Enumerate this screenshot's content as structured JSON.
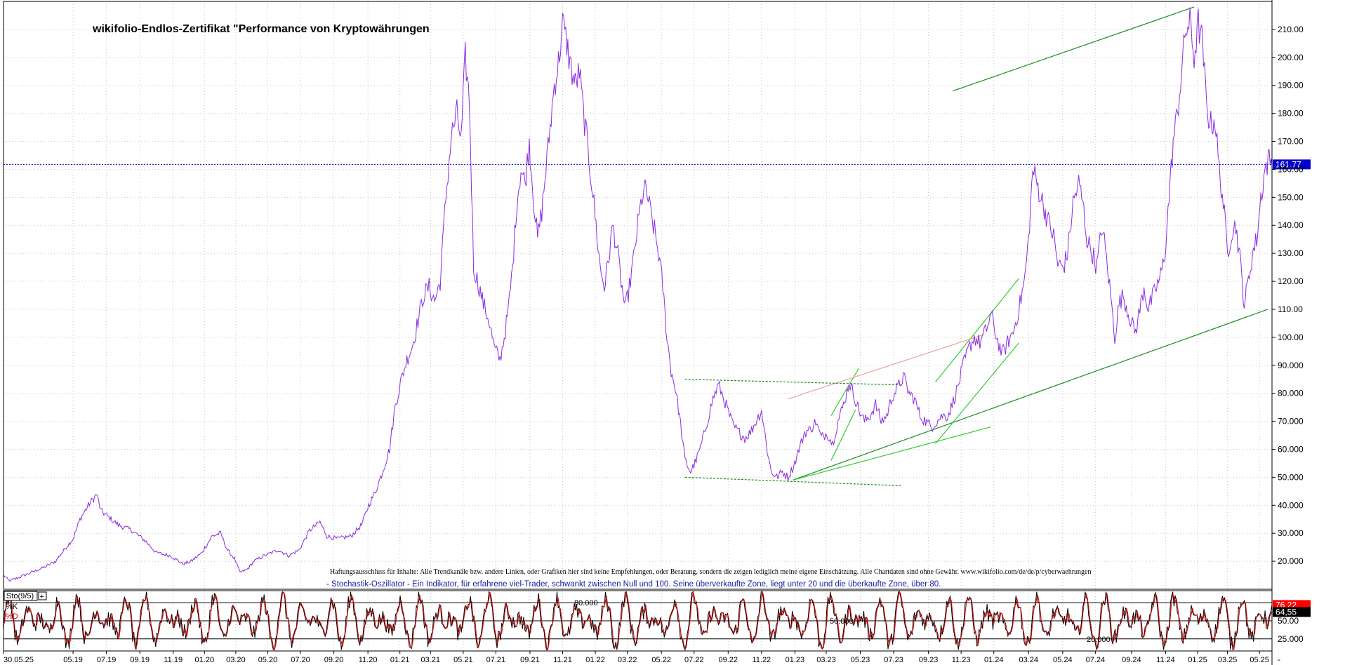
{
  "chart_data": {
    "type": "line",
    "title": "wikifolio-Endlos-Zertifikat \"Performance von Kryptowährungen",
    "ylim": [
      10,
      220
    ],
    "y_ticks": [
      20,
      30,
      40,
      50,
      60,
      70,
      80,
      90,
      100,
      110,
      120,
      130,
      140,
      150,
      160,
      170,
      180,
      190,
      200,
      210
    ],
    "y_tick_labels": [
      "20.000",
      "30.000",
      "40.000",
      "50.000",
      "60.000",
      "70.000",
      "80.000",
      "90.000",
      "100.00",
      "110.00",
      "120.00",
      "130.00",
      "140.00",
      "150.00",
      "160.00",
      "170.00",
      "180.00",
      "190.00",
      "200.00",
      "210.00"
    ],
    "x_ticks": [
      {
        "t": 0,
        "label": "30.05.25"
      },
      {
        "t": 100,
        "label": "05.19"
      },
      {
        "t": 148,
        "label": "07.19"
      },
      {
        "t": 196,
        "label": "09.19"
      },
      {
        "t": 244,
        "label": "11.19"
      },
      {
        "t": 289,
        "label": "01.20"
      },
      {
        "t": 334,
        "label": "03.20"
      },
      {
        "t": 380,
        "label": "05.20"
      },
      {
        "t": 427,
        "label": "07.20"
      },
      {
        "t": 475,
        "label": "09.20"
      },
      {
        "t": 524,
        "label": "11.20"
      },
      {
        "t": 570,
        "label": "01.21"
      },
      {
        "t": 614,
        "label": "03.21"
      },
      {
        "t": 661,
        "label": "05.21"
      },
      {
        "t": 708,
        "label": "07.21"
      },
      {
        "t": 757,
        "label": "09.21"
      },
      {
        "t": 804,
        "label": "11.21"
      },
      {
        "t": 851,
        "label": "01.22"
      },
      {
        "t": 897,
        "label": "03.22"
      },
      {
        "t": 946,
        "label": "05.22"
      },
      {
        "t": 993,
        "label": "07.22"
      },
      {
        "t": 1042,
        "label": "09.22"
      },
      {
        "t": 1090,
        "label": "11.22"
      },
      {
        "t": 1138,
        "label": "01.23"
      },
      {
        "t": 1183,
        "label": "03.23"
      },
      {
        "t": 1232,
        "label": "05.23"
      },
      {
        "t": 1280,
        "label": "07.23"
      },
      {
        "t": 1330,
        "label": "09.23"
      },
      {
        "t": 1377,
        "label": "11.23"
      },
      {
        "t": 1424,
        "label": "01.24"
      },
      {
        "t": 1474,
        "label": "03.24"
      },
      {
        "t": 1523,
        "label": "05.24"
      },
      {
        "t": 1570,
        "label": "07.24"
      },
      {
        "t": 1622,
        "label": "09.24"
      },
      {
        "t": 1671,
        "label": "11.24"
      },
      {
        "t": 1717,
        "label": "01.25"
      },
      {
        "t": 1760,
        "label": "03.25"
      },
      {
        "t": 1806,
        "label": "05.25"
      }
    ],
    "t_range": [
      0,
      1824
    ],
    "series": [
      {
        "keypoints": [
          [
            0,
            15
          ],
          [
            8,
            13
          ],
          [
            20,
            14
          ],
          [
            40,
            16
          ],
          [
            60,
            18
          ],
          [
            75,
            20
          ],
          [
            90,
            25
          ],
          [
            100,
            28
          ],
          [
            110,
            35
          ],
          [
            122,
            40
          ],
          [
            134,
            44
          ],
          [
            140,
            38
          ],
          [
            150,
            36
          ],
          [
            165,
            33
          ],
          [
            185,
            31
          ],
          [
            205,
            27
          ],
          [
            220,
            23
          ],
          [
            240,
            22
          ],
          [
            258,
            19
          ],
          [
            270,
            20
          ],
          [
            285,
            23
          ],
          [
            300,
            29
          ],
          [
            312,
            30
          ],
          [
            322,
            24
          ],
          [
            332,
            21
          ],
          [
            340,
            16
          ],
          [
            350,
            17
          ],
          [
            360,
            20
          ],
          [
            375,
            22
          ],
          [
            395,
            24
          ],
          [
            410,
            22
          ],
          [
            425,
            24
          ],
          [
            440,
            31
          ],
          [
            455,
            34
          ],
          [
            465,
            29
          ],
          [
            480,
            28
          ],
          [
            500,
            29
          ],
          [
            515,
            33
          ],
          [
            525,
            40
          ],
          [
            535,
            45
          ],
          [
            545,
            52
          ],
          [
            555,
            60
          ],
          [
            563,
            75
          ],
          [
            572,
            85
          ],
          [
            580,
            92
          ],
          [
            588,
            97
          ],
          [
            596,
            106
          ],
          [
            604,
            115
          ],
          [
            612,
            118
          ],
          [
            620,
            113
          ],
          [
            628,
            120
          ],
          [
            636,
            150
          ],
          [
            644,
            172
          ],
          [
            652,
            180
          ],
          [
            658,
            170
          ],
          [
            664,
            200
          ],
          [
            670,
            184
          ],
          [
            676,
            125
          ],
          [
            684,
            118
          ],
          [
            690,
            112
          ],
          [
            698,
            106
          ],
          [
            706,
            96
          ],
          [
            714,
            92
          ],
          [
            720,
            100
          ],
          [
            726,
            110
          ],
          [
            732,
            125
          ],
          [
            738,
            148
          ],
          [
            744,
            160
          ],
          [
            750,
            155
          ],
          [
            756,
            170
          ],
          [
            762,
            150
          ],
          [
            768,
            135
          ],
          [
            774,
            145
          ],
          [
            780,
            160
          ],
          [
            786,
            175
          ],
          [
            792,
            190
          ],
          [
            798,
            198
          ],
          [
            804,
            212
          ],
          [
            810,
            205
          ],
          [
            816,
            196
          ],
          [
            822,
            190
          ],
          [
            828,
            195
          ],
          [
            834,
            180
          ],
          [
            840,
            168
          ],
          [
            846,
            155
          ],
          [
            852,
            140
          ],
          [
            858,
            125
          ],
          [
            864,
            118
          ],
          [
            870,
            128
          ],
          [
            876,
            140
          ],
          [
            882,
            132
          ],
          [
            888,
            120
          ],
          [
            894,
            110
          ],
          [
            900,
            118
          ],
          [
            906,
            128
          ],
          [
            912,
            140
          ],
          [
            918,
            150
          ],
          [
            924,
            153
          ],
          [
            930,
            145
          ],
          [
            936,
            138
          ],
          [
            942,
            130
          ],
          [
            948,
            118
          ],
          [
            954,
            100
          ],
          [
            960,
            88
          ],
          [
            966,
            82
          ],
          [
            972,
            72
          ],
          [
            980,
            56
          ],
          [
            988,
            52
          ],
          [
            996,
            56
          ],
          [
            1004,
            62
          ],
          [
            1012,
            70
          ],
          [
            1020,
            78
          ],
          [
            1028,
            83
          ],
          [
            1036,
            78
          ],
          [
            1044,
            72
          ],
          [
            1050,
            68
          ],
          [
            1058,
            66
          ],
          [
            1066,
            64
          ],
          [
            1074,
            66
          ],
          [
            1082,
            70
          ],
          [
            1090,
            74
          ],
          [
            1098,
            60
          ],
          [
            1104,
            52
          ],
          [
            1112,
            50
          ],
          [
            1120,
            52
          ],
          [
            1128,
            50
          ],
          [
            1136,
            54
          ],
          [
            1144,
            60
          ],
          [
            1152,
            66
          ],
          [
            1160,
            67
          ],
          [
            1168,
            70
          ],
          [
            1176,
            64
          ],
          [
            1184,
            66
          ],
          [
            1192,
            62
          ],
          [
            1200,
            70
          ],
          [
            1208,
            76
          ],
          [
            1216,
            84
          ],
          [
            1222,
            80
          ],
          [
            1230,
            74
          ],
          [
            1238,
            70
          ],
          [
            1246,
            72
          ],
          [
            1254,
            76
          ],
          [
            1262,
            70
          ],
          [
            1270,
            72
          ],
          [
            1278,
            79
          ],
          [
            1286,
            82
          ],
          [
            1294,
            86
          ],
          [
            1302,
            80
          ],
          [
            1310,
            78
          ],
          [
            1318,
            72
          ],
          [
            1326,
            70
          ],
          [
            1334,
            68
          ],
          [
            1342,
            70
          ],
          [
            1350,
            72
          ],
          [
            1358,
            72
          ],
          [
            1364,
            76
          ],
          [
            1372,
            82
          ],
          [
            1380,
            90
          ],
          [
            1388,
            96
          ],
          [
            1396,
            100
          ],
          [
            1404,
            98
          ],
          [
            1412,
            102
          ],
          [
            1420,
            108
          ],
          [
            1428,
            100
          ],
          [
            1436,
            94
          ],
          [
            1444,
            98
          ],
          [
            1452,
            102
          ],
          [
            1460,
            110
          ],
          [
            1468,
            120
          ],
          [
            1474,
            135
          ],
          [
            1480,
            160
          ],
          [
            1486,
            155
          ],
          [
            1492,
            150
          ],
          [
            1498,
            145
          ],
          [
            1504,
            140
          ],
          [
            1510,
            136
          ],
          [
            1516,
            126
          ],
          [
            1524,
            125
          ],
          [
            1530,
            130
          ],
          [
            1538,
            148
          ],
          [
            1546,
            155
          ],
          [
            1552,
            148
          ],
          [
            1558,
            135
          ],
          [
            1566,
            130
          ],
          [
            1572,
            125
          ],
          [
            1580,
            140
          ],
          [
            1586,
            128
          ],
          [
            1592,
            115
          ],
          [
            1598,
            100
          ],
          [
            1604,
            112
          ],
          [
            1610,
            115
          ],
          [
            1616,
            110
          ],
          [
            1622,
            105
          ],
          [
            1628,
            102
          ],
          [
            1634,
            110
          ],
          [
            1640,
            118
          ],
          [
            1646,
            110
          ],
          [
            1652,
            114
          ],
          [
            1658,
            118
          ],
          [
            1664,
            122
          ],
          [
            1670,
            130
          ],
          [
            1676,
            150
          ],
          [
            1682,
            170
          ],
          [
            1688,
            180
          ],
          [
            1694,
            195
          ],
          [
            1700,
            210
          ],
          [
            1706,
            212
          ],
          [
            1712,
            200
          ],
          [
            1718,
            212
          ],
          [
            1724,
            205
          ],
          [
            1730,
            182
          ],
          [
            1736,
            176
          ],
          [
            1742,
            178
          ],
          [
            1748,
            160
          ],
          [
            1754,
            148
          ],
          [
            1760,
            130
          ],
          [
            1766,
            138
          ],
          [
            1772,
            140
          ],
          [
            1778,
            128
          ],
          [
            1784,
            112
          ],
          [
            1790,
            120
          ],
          [
            1796,
            130
          ],
          [
            1802,
            135
          ],
          [
            1808,
            150
          ],
          [
            1814,
            160
          ],
          [
            1820,
            164
          ],
          [
            1824,
            161.77
          ]
        ],
        "current": 161.77
      }
    ],
    "trend_lines": [
      {
        "color": "#1e8c1e",
        "dashed": false,
        "from": [
          1365,
          188
        ],
        "to": [
          1712,
          218
        ]
      },
      {
        "color": "#1e8c1e",
        "dashed": false,
        "from": [
          1135,
          49
        ],
        "to": [
          1818,
          110
        ]
      },
      {
        "color": "#33cc33",
        "dashed": false,
        "from": [
          1135,
          49
        ],
        "to": [
          1420,
          68
        ]
      },
      {
        "color": "#33cc33",
        "dashed": false,
        "from": [
          1340,
          62
        ],
        "to": [
          1460,
          98
        ]
      },
      {
        "color": "#33cc33",
        "dashed": false,
        "from": [
          1340,
          84
        ],
        "to": [
          1460,
          121
        ]
      },
      {
        "color": "#33cc33",
        "dashed": false,
        "from": [
          1190,
          56
        ],
        "to": [
          1225,
          74
        ]
      },
      {
        "color": "#33cc33",
        "dashed": false,
        "from": [
          1190,
          72
        ],
        "to": [
          1230,
          89
        ]
      },
      {
        "color": "#f0a0a0",
        "dashed": false,
        "from": [
          1128,
          78
        ],
        "to": [
          1410,
          101
        ]
      },
      {
        "color": "#1e8c1e",
        "dashed": true,
        "from": [
          980,
          85
        ],
        "to": [
          1290,
          83
        ]
      },
      {
        "color": "#1e8c1e",
        "dashed": true,
        "from": [
          980,
          50
        ],
        "to": [
          1290,
          47
        ]
      }
    ],
    "oscillator": {
      "name": "Sto(9/5)",
      "k_label": "%K",
      "d_label": "%D",
      "description": "- Stochastik-Oszillator - Ein Indikator, für erfahrene viel-Trader, schwankt zwischen Null und 100. Seine überverkaufte Zone, liegt unter 20 und die überkaufte Zone, über 80.",
      "ylim": [
        0,
        100
      ],
      "levels": [
        20,
        50,
        80
      ],
      "level_labels": [
        "20.000",
        "50.000",
        "80.000"
      ],
      "right_labels": [
        "25.000",
        "50.00"
      ],
      "k_value": 76.22,
      "d_value": 64.55
    },
    "disclaimer": "Haftungsausschluss für Inhalte: Alle Trendkanäle bzw. andere Linien, oder Grafiken hier sind keine Empfehlungen, oder Beratung, sondern die zeigen lediglich meine eigene Einschätzung. Alle Chartdaten sind ohne Gewähr.  www.wikifolio.com/de/de/p/cyberwaehrungen",
    "current_label": "161.77",
    "minus_label": "-",
    "colors": {
      "price": "#8a2be2",
      "current": "#0000cc",
      "k": "#000000",
      "d": "#d00000",
      "k_bg": "#ff0000",
      "d_bg": "#000000"
    }
  }
}
